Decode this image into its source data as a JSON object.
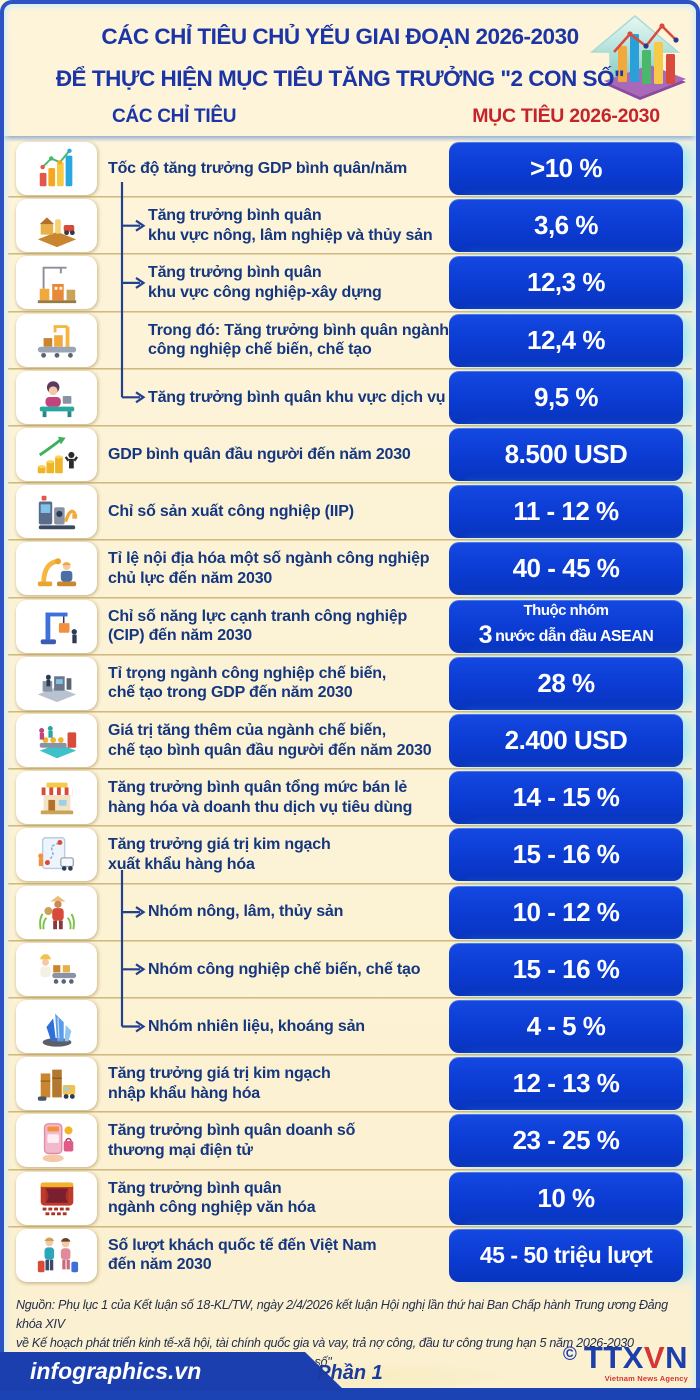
{
  "header": {
    "title_line1": "CÁC CHỈ TIÊU CHỦ YẾU GIAI ĐOẠN 2026-2030",
    "title_line2": "ĐỂ THỰC HIỆN MỤC TIÊU TĂNG TRƯỞNG \"2 CON SỐ\"",
    "col_left": "CÁC CHỈ TIÊU",
    "col_right": "MỤC TIÊU 2026-2030",
    "hero_icon": "growth-chart-icon"
  },
  "colors": {
    "background_cream": "#fcf2d5",
    "title_blue": "#1c35a6",
    "label_blue": "#15377f",
    "value_box_blue": "#0b3bd2",
    "header_red": "#c4242b",
    "frame_blue": "#2d52c4",
    "bottom_bar_blue": "#1b3fae"
  },
  "rows": [
    {
      "label": "Tốc độ tăng trưởng GDP bình quân/năm",
      "value": ">10 %",
      "icon": "bar-chart-icon",
      "indent": false,
      "arrow": false
    },
    {
      "label": "Tăng trưởng bình quân\nkhu vực nông, lâm nghiệp và thủy sản",
      "value": "3,6 %",
      "icon": "farm-icon",
      "indent": true,
      "arrow": true
    },
    {
      "label": "Tăng trưởng bình quân\nkhu vực công nghiệp-xây dựng",
      "value": "12,3 %",
      "icon": "construction-icon",
      "indent": true,
      "arrow": true
    },
    {
      "label": "Trong đó: Tăng trưởng bình quân ngành\ncông nghiệp chế biến, chế tạo",
      "value": "12,4 %",
      "icon": "manufacturing-icon",
      "indent": true,
      "arrow": false
    },
    {
      "label": "Tăng trưởng bình quân khu vực dịch vụ",
      "value": "9,5 %",
      "icon": "service-desk-icon",
      "indent": true,
      "arrow": true
    },
    {
      "label": "GDP bình quân đầu người đến năm 2030",
      "value": "8.500 USD",
      "icon": "gdp-per-capita-icon",
      "indent": false,
      "arrow": false
    },
    {
      "label": "Chỉ số sản xuất công nghiệp (IIP)",
      "value": "11 - 12 %",
      "icon": "industrial-production-icon",
      "indent": false,
      "arrow": false
    },
    {
      "label": "Tỉ lệ nội địa hóa một số ngành công nghiệp\nchủ lực đến năm 2030",
      "value": "40 - 45 %",
      "icon": "localization-icon",
      "indent": false,
      "arrow": false
    },
    {
      "label": "Chỉ số năng lực cạnh tranh công nghiệp\n(CIP) đến năm 2030",
      "value": {
        "line1": "Thuộc nhóm",
        "big": "3",
        "line2": "nước dẫn đầu ASEAN"
      },
      "icon": "cip-icon",
      "indent": false,
      "arrow": false
    },
    {
      "label": "Tỉ trọng ngành công nghiệp chế biến,\nchế tạo trong GDP đến năm 2030",
      "value": "28 %",
      "icon": "manufacturing-share-icon",
      "indent": false,
      "arrow": false
    },
    {
      "label": "Giá trị tăng thêm của ngành chế biến,\nchế tạo bình quân đầu người đến năm 2030",
      "value": "2.400 USD",
      "icon": "value-added-icon",
      "indent": false,
      "arrow": false
    },
    {
      "label": "Tăng trưởng bình quân tổng mức bán lẻ\nhàng hóa và doanh thu dịch vụ tiêu dùng",
      "value": "14 - 15 %",
      "icon": "retail-store-icon",
      "indent": false,
      "arrow": false
    },
    {
      "label": "Tăng trưởng giá trị kim ngạch\nxuất khẩu hàng hóa",
      "value": "15 - 16 %",
      "icon": "export-map-icon",
      "indent": false,
      "arrow": false
    },
    {
      "label": "Nhóm nông, lâm, thủy sản",
      "value": "10 - 12 %",
      "icon": "farmer-icon",
      "indent": true,
      "arrow": true
    },
    {
      "label": "Nhóm công nghiệp chế biến, chế tạo",
      "value": "15 - 16 %",
      "icon": "conveyor-worker-icon",
      "indent": true,
      "arrow": true
    },
    {
      "label": "Nhóm nhiên liệu, khoáng sản",
      "value": "4 - 5 %",
      "icon": "minerals-icon",
      "indent": true,
      "arrow": true
    },
    {
      "label": "Tăng trưởng giá trị kim ngạch\nnhập khẩu hàng hóa",
      "value": "12 - 13 %",
      "icon": "import-trucks-icon",
      "indent": false,
      "arrow": false
    },
    {
      "label": "Tăng trưởng bình quân doanh số\nthương mại điện tử",
      "value": "23 - 25 %",
      "icon": "ecommerce-icon",
      "indent": false,
      "arrow": false
    },
    {
      "label": "Tăng trưởng bình quân\nngành công nghiệp văn hóa",
      "value": "10 %",
      "icon": "culture-theater-icon",
      "indent": false,
      "arrow": false
    },
    {
      "label": "Số lượt khách quốc tế đến Việt Nam\nđến năm 2030",
      "value": "45 - 50 triệu lượt",
      "icon": "tourists-icon",
      "indent": false,
      "arrow": false,
      "value_small": true
    }
  ],
  "footer": {
    "source_line1": "Nguồn: Phụ lục 1 của Kết luận số 18-KL/TW, ngày 2/4/2026 kết luận Hội nghị lần thứ hai Ban Chấp hành Trung ương Đảng khóa XIV",
    "source_line2": "về Kế hoạch phát triển kinh tế-xã hội, tài chính quốc gia và vay, trả nợ công, đầu tư công trung hạn 5 năm 2026-2030",
    "source_line3": "gắn với thực hiện mục tiêu phấn đấu tăng trưởng \"2 con số\"",
    "brand": "infographics.vn",
    "part": "Phần 1",
    "agency": {
      "copyright": "©",
      "ttx": "TTX",
      "v": "V",
      "n": "N",
      "tagline": "Vietnam News Agency"
    }
  }
}
